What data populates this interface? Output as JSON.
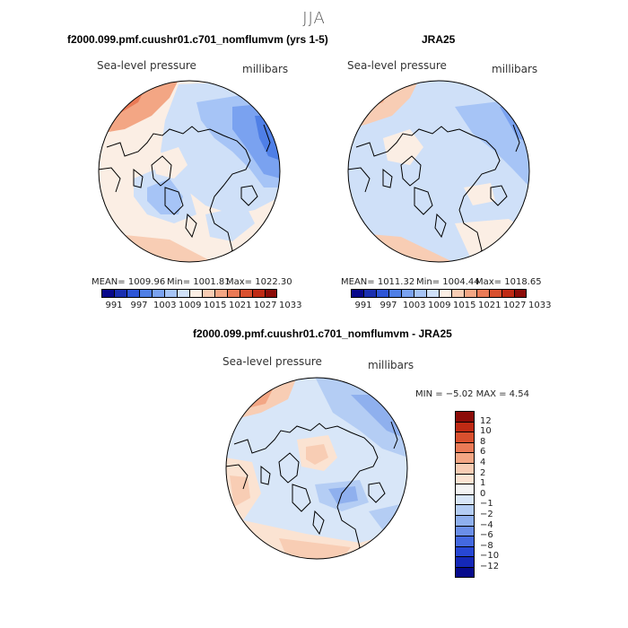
{
  "season": "JJA",
  "panels": [
    {
      "title": "f2000.099.pmf.cuushr01.c701_nomflumvm (yrs 1-5)",
      "field": "Sea-level pressure",
      "units": "millibars",
      "mean": "MEAN= 1009.96",
      "min": "Min= 1001.81",
      "max": "Max= 1022.30"
    },
    {
      "title": "JRA25",
      "field": "Sea-level pressure",
      "units": "millibars",
      "mean": "MEAN= 1011.32",
      "min": "Min= 1004.44",
      "max": "Max= 1018.65"
    },
    {
      "title": "f2000.099.pmf.cuushr01.c701_nomflumvm - JRA25",
      "field": "Sea-level pressure",
      "units": "millibars",
      "stats": "MIN =   −5.02  MAX =    4.54"
    }
  ],
  "chart_data": [
    {
      "type": "heatmap",
      "title": "f2000.099.pmf.cuushr01.c701_nomflumvm (yrs 1-5)",
      "field": "Sea-level pressure",
      "units": "millibars",
      "projection": "polar stereographic (North Pole)",
      "mean": 1009.96,
      "min": 1001.81,
      "max": 1022.3,
      "colorbar_ticks": [
        "991",
        "997",
        "1003",
        "1009",
        "1015",
        "1021",
        "1027",
        "1033"
      ],
      "colorbar_colors": [
        "#08088a",
        "#1a2fb0",
        "#2d55d6",
        "#4f7fe6",
        "#7aa2f0",
        "#a6c4f6",
        "#cfe0f8",
        "#fbeee4",
        "#f8cdb4",
        "#f3a684",
        "#ea7a56",
        "#d9502e",
        "#bf2a14",
        "#8c0c08"
      ]
    },
    {
      "type": "heatmap",
      "title": "JRA25",
      "field": "Sea-level pressure",
      "units": "millibars",
      "projection": "polar stereographic (North Pole)",
      "mean": 1011.32,
      "min": 1004.44,
      "max": 1018.65,
      "colorbar_ticks": [
        "991",
        "997",
        "1003",
        "1009",
        "1015",
        "1021",
        "1027",
        "1033"
      ],
      "colorbar_colors": [
        "#08088a",
        "#1a2fb0",
        "#2d55d6",
        "#4f7fe6",
        "#7aa2f0",
        "#a6c4f6",
        "#cfe0f8",
        "#fbeee4",
        "#f8cdb4",
        "#f3a684",
        "#ea7a56",
        "#d9502e",
        "#bf2a14",
        "#8c0c08"
      ]
    },
    {
      "type": "heatmap",
      "title": "f2000.099.pmf.cuushr01.c701_nomflumvm - JRA25",
      "field": "Sea-level pressure",
      "units": "millibars",
      "projection": "polar stereographic (North Pole)",
      "min": -5.02,
      "max": 4.54,
      "colorbar_ticks": [
        "12",
        "10",
        "8",
        "6",
        "4",
        "2",
        "1",
        "0",
        "−1",
        "−2",
        "−4",
        "−6",
        "−8",
        "−10",
        "−12"
      ],
      "colorbar_colors": [
        "#8c0c08",
        "#bf2a14",
        "#d9502e",
        "#ea7a56",
        "#f3a684",
        "#f8cdb4",
        "#fbe3d2",
        "#f4f4f4",
        "#d8e6f8",
        "#b4cdf4",
        "#8fb0ee",
        "#6b8fe8",
        "#4469e0",
        "#2747d4",
        "#1428b8",
        "#060a8c"
      ]
    }
  ]
}
